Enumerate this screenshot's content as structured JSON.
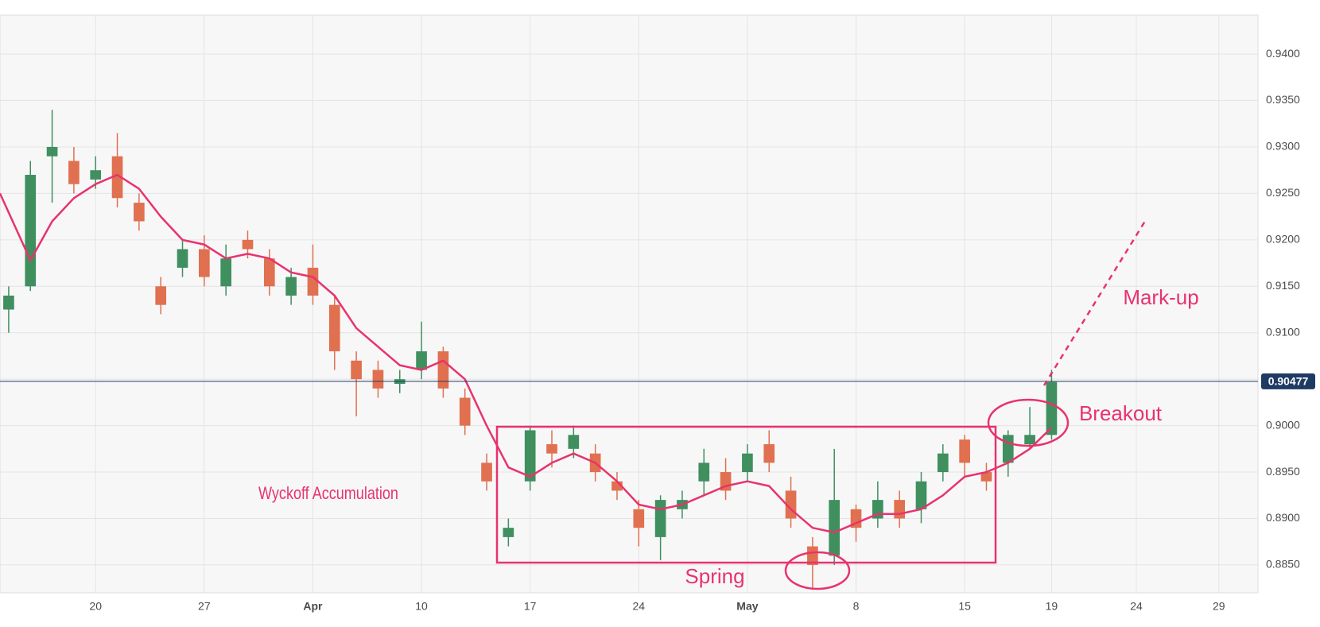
{
  "chart_data": {
    "type": "candlestick",
    "x": [
      -4,
      -3,
      -2,
      -1,
      0,
      1,
      2,
      3,
      4,
      5,
      6,
      7,
      8,
      9,
      10,
      11,
      12,
      13,
      14,
      15,
      16,
      17,
      18,
      19,
      20,
      21,
      22,
      23,
      24,
      25,
      26,
      27,
      28,
      29,
      30,
      31,
      32,
      33,
      34,
      35,
      36,
      37,
      38,
      39,
      40,
      41,
      42,
      43,
      44
    ],
    "open": [
      0.9125,
      0.915,
      0.929,
      0.9285,
      0.9265,
      0.929,
      0.924,
      0.915,
      0.917,
      0.919,
      0.915,
      0.92,
      0.918,
      0.914,
      0.917,
      0.913,
      0.907,
      0.906,
      0.9045,
      0.906,
      0.908,
      0.903,
      0.896,
      0.888,
      0.894,
      0.898,
      0.8975,
      0.897,
      0.894,
      0.891,
      0.888,
      0.891,
      0.894,
      0.895,
      0.895,
      0.898,
      0.893,
      0.887,
      0.886,
      0.891,
      0.89,
      0.892,
      0.891,
      0.895,
      0.8985,
      0.895,
      0.896,
      0.898,
      0.899
    ],
    "high": [
      0.915,
      0.9285,
      0.934,
      0.93,
      0.929,
      0.9315,
      0.925,
      0.916,
      0.92,
      0.9205,
      0.9195,
      0.921,
      0.919,
      0.917,
      0.9195,
      0.914,
      0.908,
      0.907,
      0.906,
      0.9112,
      0.9085,
      0.904,
      0.897,
      0.89,
      0.9,
      0.8995,
      0.9,
      0.898,
      0.895,
      0.892,
      0.8925,
      0.893,
      0.8975,
      0.8965,
      0.898,
      0.8995,
      0.8945,
      0.888,
      0.8975,
      0.8915,
      0.894,
      0.893,
      0.895,
      0.898,
      0.899,
      0.896,
      0.8995,
      0.902,
      0.906
    ],
    "low": [
      0.91,
      0.9145,
      0.924,
      0.925,
      0.9255,
      0.9235,
      0.921,
      0.912,
      0.916,
      0.915,
      0.914,
      0.918,
      0.914,
      0.913,
      0.913,
      0.906,
      0.901,
      0.903,
      0.9035,
      0.905,
      0.903,
      0.899,
      0.893,
      0.887,
      0.893,
      0.8955,
      0.8965,
      0.894,
      0.892,
      0.887,
      0.8855,
      0.89,
      0.8925,
      0.892,
      0.894,
      0.895,
      0.889,
      0.8825,
      0.885,
      0.8875,
      0.889,
      0.889,
      0.8895,
      0.894,
      0.8945,
      0.893,
      0.8945,
      0.8975,
      0.8985
    ],
    "close": [
      0.914,
      0.927,
      0.93,
      0.926,
      0.9275,
      0.9245,
      0.922,
      0.913,
      0.919,
      0.916,
      0.918,
      0.919,
      0.915,
      0.916,
      0.914,
      0.908,
      0.905,
      0.904,
      0.905,
      0.908,
      0.904,
      0.9,
      0.894,
      0.889,
      0.8995,
      0.897,
      0.899,
      0.895,
      0.893,
      0.889,
      0.892,
      0.892,
      0.896,
      0.893,
      0.897,
      0.896,
      0.89,
      0.885,
      0.892,
      0.889,
      0.892,
      0.89,
      0.894,
      0.897,
      0.896,
      0.894,
      0.899,
      0.899,
      0.9047
    ],
    "up_color": "#3f8f5f",
    "down_color": "#e0704f",
    "moving_average": {
      "color": "#e8336d",
      "x": [
        -4.4,
        -3,
        -2,
        -1,
        0,
        1,
        2,
        3,
        4,
        5,
        6,
        7,
        8,
        9,
        10,
        11,
        12,
        13,
        14,
        15,
        16,
        17,
        18,
        19,
        20,
        21,
        22,
        23,
        24,
        25,
        26,
        27,
        28,
        29,
        30,
        31,
        32,
        33,
        34,
        35,
        36,
        37,
        38,
        39,
        40,
        41,
        42,
        43,
        44
      ],
      "values": [
        0.925,
        0.9178,
        0.922,
        0.9245,
        0.926,
        0.927,
        0.9255,
        0.9225,
        0.92,
        0.9195,
        0.918,
        0.9185,
        0.918,
        0.9165,
        0.916,
        0.914,
        0.9105,
        0.9085,
        0.9065,
        0.906,
        0.907,
        0.905,
        0.9,
        0.8955,
        0.8945,
        0.896,
        0.897,
        0.896,
        0.894,
        0.8915,
        0.891,
        0.8915,
        0.8925,
        0.8935,
        0.894,
        0.8935,
        0.891,
        0.889,
        0.8885,
        0.8895,
        0.8905,
        0.8905,
        0.891,
        0.8925,
        0.8945,
        0.895,
        0.896,
        0.8975,
        0.8998
      ]
    },
    "last_price": 0.90477,
    "last_price_color": "#1f3b63",
    "xlim": [
      -4.4,
      53.5
    ],
    "ylim": [
      0.882,
      0.9442
    ],
    "xticks": [
      {
        "value": 0,
        "label": "20"
      },
      {
        "value": 5,
        "label": "27"
      },
      {
        "value": 10,
        "label": "Apr"
      },
      {
        "value": 15,
        "label": "10"
      },
      {
        "value": 20,
        "label": "17"
      },
      {
        "value": 25,
        "label": "24"
      },
      {
        "value": 30,
        "label": "May"
      },
      {
        "value": 35,
        "label": "8"
      },
      {
        "value": 40,
        "label": "15"
      },
      {
        "value": 44,
        "label": "19"
      },
      {
        "value": 47.9,
        "label": "24"
      },
      {
        "value": 51.7,
        "label": "29"
      }
    ],
    "yticks": [
      {
        "value": 0.885,
        "label": "0.8850"
      },
      {
        "value": 0.89,
        "label": "0.8900"
      },
      {
        "value": 0.895,
        "label": "0.8950"
      },
      {
        "value": 0.9,
        "label": "0.9000"
      },
      {
        "value": 0.905,
        "label": "0.9050"
      },
      {
        "value": 0.91,
        "label": "0.9100"
      },
      {
        "value": 0.915,
        "label": "0.9150"
      },
      {
        "value": 0.92,
        "label": "0.9200"
      },
      {
        "value": 0.925,
        "label": "0.9250"
      },
      {
        "value": 0.93,
        "label": "0.9300"
      },
      {
        "value": 0.935,
        "label": "0.9350"
      },
      {
        "value": 0.94,
        "label": "0.9400"
      }
    ],
    "grid": true,
    "annotations": {
      "accumulation": "Wyckoff  Accumulation",
      "spring": "Spring",
      "breakout": "Breakout",
      "markup": "Mark-up"
    }
  }
}
